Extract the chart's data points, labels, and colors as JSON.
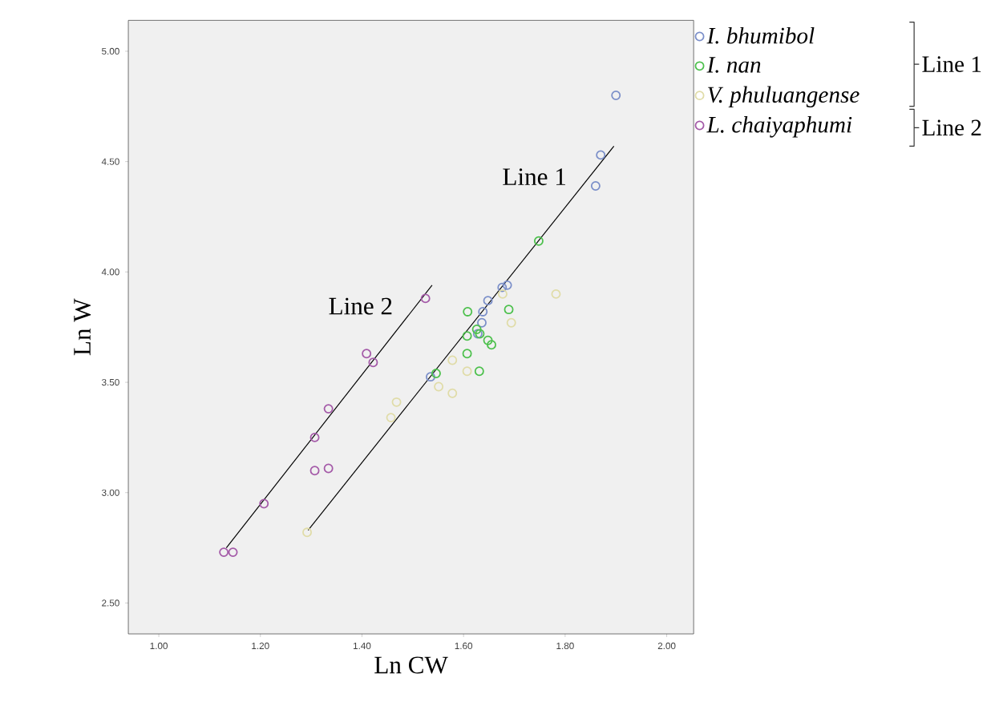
{
  "chart_data": {
    "type": "scatter",
    "xlabel": "Ln CW",
    "ylabel": "Ln W",
    "xlim": [
      0.94,
      2.053
    ],
    "ylim": [
      2.36,
      5.14
    ],
    "xticks": [
      {
        "value": 1,
        "label": "1.00"
      },
      {
        "value": 1.2,
        "label": "1.20"
      },
      {
        "value": 1.4,
        "label": "1.40"
      },
      {
        "value": 1.6,
        "label": "1.60"
      },
      {
        "value": 1.8,
        "label": "1.80"
      },
      {
        "value": 2,
        "label": "2.00"
      }
    ],
    "yticks": [
      {
        "value": 2.5,
        "label": "2.50"
      },
      {
        "value": 3,
        "label": "3.00"
      },
      {
        "value": 3.5,
        "label": "3.50"
      },
      {
        "value": 4,
        "label": "4.00"
      },
      {
        "value": 4.5,
        "label": "4.50"
      },
      {
        "value": 5,
        "label": "5.00"
      }
    ],
    "marker": "circle",
    "grid": false,
    "legend": "top right",
    "series": [
      {
        "name": "*I. bhumibol*",
        "color": "#7b8fc9",
        "x": [
          1.9,
          1.87,
          1.86,
          1.535,
          1.628,
          1.636,
          1.638,
          1.648,
          1.676,
          1.686
        ],
        "values": [
          4.8,
          4.53,
          4.39,
          3.525,
          3.72,
          3.77,
          3.82,
          3.87,
          3.93,
          3.94
        ]
      },
      {
        "name": "*I. nan*",
        "color": "#4cc04c",
        "x": [
          1.748,
          1.608,
          1.689,
          1.607,
          1.626,
          1.648,
          1.655,
          1.607,
          1.631,
          1.546,
          1.632
        ],
        "values": [
          4.14,
          3.82,
          3.83,
          3.71,
          3.74,
          3.69,
          3.67,
          3.63,
          3.55,
          3.54,
          3.72
        ]
      },
      {
        "name": "*V. phuluangense*",
        "color": "#e0dca8",
        "x": [
          1.292,
          1.457,
          1.468,
          1.551,
          1.578,
          1.578,
          1.607,
          1.677,
          1.694,
          1.782
        ],
        "values": [
          2.82,
          3.34,
          3.41,
          3.48,
          3.6,
          3.45,
          3.55,
          3.9,
          3.77,
          3.9
        ]
      },
      {
        "name": "*L. chaiyaphumi*",
        "color": "#a45aa8",
        "x": [
          1.128,
          1.146,
          1.207,
          1.307,
          1.307,
          1.334,
          1.334,
          1.409,
          1.422,
          1.525
        ],
        "values": [
          2.73,
          2.73,
          2.95,
          3.25,
          3.1,
          3.11,
          3.38,
          3.63,
          3.59,
          3.88
        ]
      },
      {
        "type": "line",
        "marker": "none",
        "color": "#000000",
        "x": [
          1.294,
          1.896
        ],
        "values": [
          2.83,
          4.57
        ]
      },
      {
        "type": "line",
        "marker": "none",
        "color": "#000000",
        "x": [
          1.133,
          1.538
        ],
        "values": [
          2.75,
          3.94
        ]
      }
    ],
    "annotations": [
      "Line 1",
      "Line 2",
      "Line 1",
      "Line 2"
    ]
  }
}
